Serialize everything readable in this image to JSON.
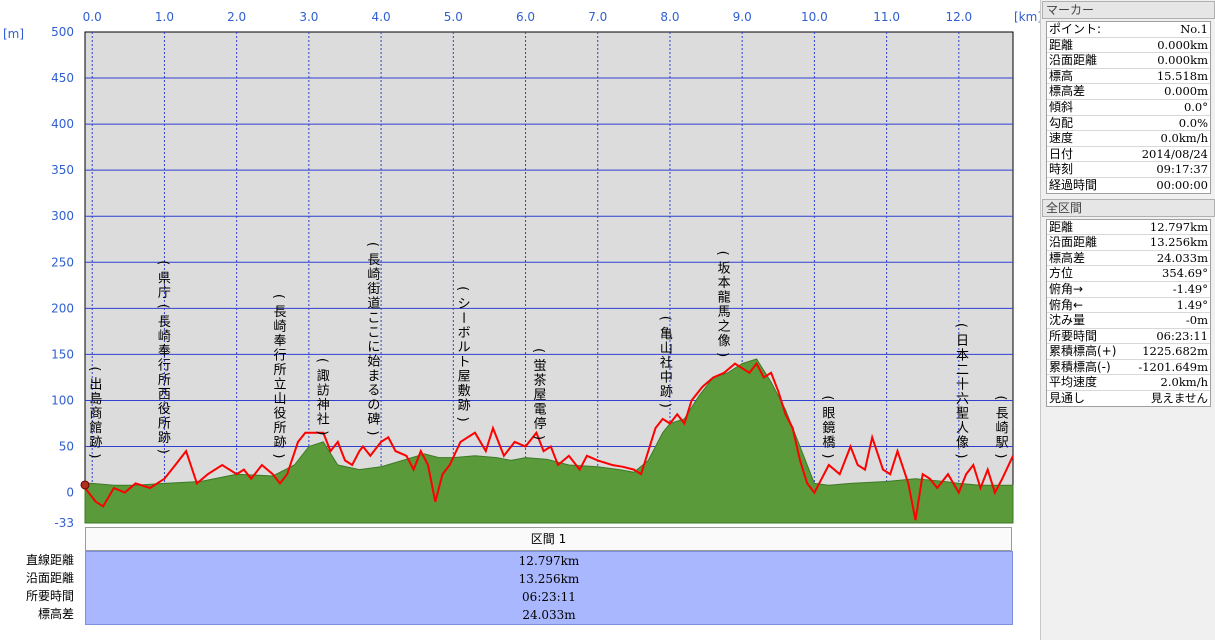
{
  "chart_data": {
    "type": "area",
    "x_unit": "[km]",
    "y_unit": "[m]",
    "xlim": [
      -0.1,
      12.75
    ],
    "ylim": [
      -33,
      500
    ],
    "x_ticks": [
      "0.0",
      "1.0",
      "2.0",
      "3.0",
      "4.0",
      "5.0",
      "6.0",
      "7.0",
      "8.0",
      "9.0",
      "10.0",
      "11.0",
      "12.0"
    ],
    "y_ticks": [
      "500",
      "450",
      "400",
      "350",
      "300",
      "250",
      "200",
      "150",
      "100",
      "50",
      "0",
      "-33"
    ],
    "grid": true,
    "series": [
      {
        "kind": "area",
        "color": "#5a9a3a",
        "x": [
          -0.1,
          0.0,
          0.3,
          0.6,
          1.0,
          1.5,
          2.0,
          2.5,
          2.8,
          3.0,
          3.2,
          3.4,
          3.7,
          4.0,
          4.3,
          4.6,
          4.8,
          5.0,
          5.3,
          5.6,
          5.8,
          6.0,
          6.3,
          6.6,
          7.0,
          7.3,
          7.5,
          7.7,
          7.9,
          8.0,
          8.2,
          8.4,
          8.6,
          8.8,
          9.0,
          9.2,
          9.4,
          9.6,
          9.8,
          10.0,
          10.2,
          10.5,
          11.0,
          11.4,
          11.8,
          12.0,
          12.3,
          12.5,
          12.75
        ],
        "y": [
          10,
          10,
          8,
          8,
          10,
          12,
          20,
          18,
          30,
          50,
          55,
          30,
          25,
          28,
          35,
          42,
          38,
          38,
          40,
          38,
          35,
          38,
          36,
          30,
          28,
          25,
          22,
          35,
          65,
          75,
          80,
          105,
          125,
          130,
          140,
          145,
          120,
          90,
          50,
          10,
          8,
          10,
          12,
          15,
          12,
          10,
          8,
          8,
          8
        ]
      },
      {
        "kind": "line",
        "color": "#ff0000",
        "x": [
          -0.1,
          0.05,
          0.15,
          0.3,
          0.45,
          0.6,
          0.8,
          1.0,
          1.15,
          1.3,
          1.45,
          1.6,
          1.8,
          2.0,
          2.1,
          2.2,
          2.35,
          2.5,
          2.6,
          2.7,
          2.85,
          2.95,
          3.05,
          3.2,
          3.3,
          3.4,
          3.5,
          3.6,
          3.7,
          3.75,
          3.85,
          4.0,
          4.1,
          4.2,
          4.35,
          4.45,
          4.55,
          4.65,
          4.75,
          4.85,
          4.95,
          5.1,
          5.3,
          5.45,
          5.55,
          5.7,
          5.85,
          6.0,
          6.15,
          6.25,
          6.35,
          6.45,
          6.6,
          6.75,
          6.85,
          7.0,
          7.2,
          7.35,
          7.5,
          7.6,
          7.7,
          7.8,
          7.9,
          8.0,
          8.1,
          8.2,
          8.3,
          8.45,
          8.6,
          8.75,
          8.9,
          9.0,
          9.1,
          9.2,
          9.3,
          9.4,
          9.5,
          9.6,
          9.7,
          9.8,
          9.9,
          10.0,
          10.1,
          10.2,
          10.35,
          10.5,
          10.6,
          10.7,
          10.8,
          10.95,
          11.05,
          11.15,
          11.3,
          11.4,
          11.5,
          11.6,
          11.7,
          11.85,
          12.0,
          12.1,
          12.2,
          12.3,
          12.4,
          12.5,
          12.6,
          12.75
        ],
        "y": [
          5,
          -10,
          -15,
          5,
          0,
          10,
          5,
          15,
          30,
          45,
          10,
          20,
          30,
          20,
          25,
          15,
          30,
          20,
          10,
          20,
          55,
          65,
          65,
          65,
          45,
          55,
          35,
          30,
          45,
          50,
          40,
          55,
          60,
          45,
          40,
          25,
          45,
          30,
          -10,
          20,
          30,
          55,
          65,
          45,
          70,
          40,
          55,
          50,
          65,
          45,
          50,
          30,
          40,
          25,
          40,
          35,
          30,
          28,
          25,
          20,
          45,
          70,
          80,
          75,
          85,
          75,
          100,
          115,
          125,
          130,
          140,
          135,
          130,
          140,
          125,
          130,
          110,
          85,
          70,
          35,
          10,
          0,
          15,
          30,
          20,
          50,
          30,
          25,
          60,
          25,
          20,
          45,
          10,
          -30,
          20,
          15,
          5,
          20,
          0,
          20,
          30,
          5,
          25,
          0,
          15,
          40
        ]
      }
    ],
    "annotations": [
      {
        "x": 0.05,
        "y": 30,
        "text": "(出島商館跡)"
      },
      {
        "x": 1.0,
        "y": 35,
        "text": "(県庁(長崎奉行所西役所跡)"
      },
      {
        "x": 2.6,
        "y": 30,
        "text": "(長崎奉行所立山役所跡)"
      },
      {
        "x": 3.2,
        "y": 55,
        "text": "(諏訪神社)"
      },
      {
        "x": 3.9,
        "y": 55,
        "text": "(長崎街道ここに始まるの碑)"
      },
      {
        "x": 5.15,
        "y": 70,
        "text": "(シーボルト屋敷跡)"
      },
      {
        "x": 6.2,
        "y": 50,
        "text": "(蛍茶屋電停)"
      },
      {
        "x": 7.95,
        "y": 85,
        "text": "(亀山社中跡)"
      },
      {
        "x": 8.75,
        "y": 140,
        "text": "(坂本龍馬之像)"
      },
      {
        "x": 10.2,
        "y": 30,
        "text": "(眼鏡橋)"
      },
      {
        "x": 12.05,
        "y": 30,
        "text": "(日本二十六聖人像)"
      },
      {
        "x": 12.6,
        "y": 30,
        "text": "(長崎駅)"
      }
    ]
  },
  "marker_panel": {
    "title": "マーカー",
    "rows": [
      {
        "label": "ポイント:",
        "value": "No.1"
      },
      {
        "label": "距離",
        "value": "0.000km"
      },
      {
        "label": "沿面距離",
        "value": "0.000km"
      },
      {
        "label": "標高",
        "value": "15.518m"
      },
      {
        "label": "標高差",
        "value": "0.000m"
      },
      {
        "label": "傾斜",
        "value": "0.0°"
      },
      {
        "label": "勾配",
        "value": "0.0%"
      },
      {
        "label": "速度",
        "value": "0.0km/h"
      },
      {
        "label": "日付",
        "value": "2014/08/24"
      },
      {
        "label": "時刻",
        "value": "09:17:37"
      },
      {
        "label": "経過時間",
        "value": "00:00:00"
      }
    ]
  },
  "total_panel": {
    "title": "全区間",
    "rows": [
      {
        "label": "距離",
        "value": "12.797km"
      },
      {
        "label": "沿面距離",
        "value": "13.256km"
      },
      {
        "label": "標高差",
        "value": "24.033m"
      },
      {
        "label": "方位",
        "value": "354.69°"
      },
      {
        "label": "俯角→",
        "value": "-1.49°"
      },
      {
        "label": "俯角←",
        "value": "1.49°"
      },
      {
        "label": "沈み量",
        "value": "-0m"
      },
      {
        "label": "所要時間",
        "value": "06:23:11"
      },
      {
        "label": "累積標高(+)",
        "value": "1225.682m"
      },
      {
        "label": "累積標高(-)",
        "value": "-1201.649m"
      },
      {
        "label": "平均速度",
        "value": "2.0km/h"
      },
      {
        "label": "見通し",
        "value": "見えません"
      }
    ]
  },
  "segment_table": {
    "header": "区間 1",
    "rows": [
      {
        "label": "直線距離",
        "value": "12.797km"
      },
      {
        "label": "沿面距離",
        "value": "13.256km"
      },
      {
        "label": "所要時間",
        "value": "06:23:11"
      },
      {
        "label": "標高差",
        "value": "24.033m"
      }
    ]
  },
  "colors": {
    "plot_bg": "#dcdcdc",
    "grid": "#3040d0",
    "terrain": "#5a9a3a",
    "track": "#ff0000",
    "axis_text": "#2f5fd0",
    "segment_bg": "#a9b7ff"
  }
}
